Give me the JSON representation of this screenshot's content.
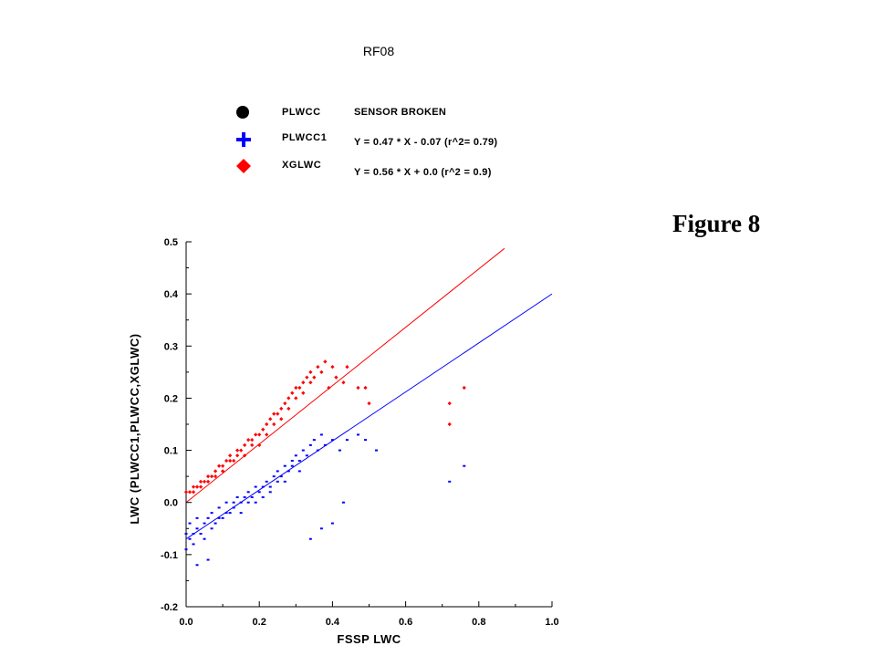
{
  "figure_label": "Figure 8",
  "chart_data": {
    "type": "scatter",
    "title": "RF08",
    "xlabel": "FSSP LWC",
    "ylabel": "LWC (PLWCC1,PLWCC,XGLWC)",
    "xlim": [
      0.0,
      1.0
    ],
    "ylim": [
      -0.2,
      0.5
    ],
    "x_ticks": [
      "0.0",
      "0.2",
      "0.4",
      "0.6",
      "0.8",
      "1.0"
    ],
    "y_ticks": [
      "-0.2",
      "-0.1",
      "0.0",
      "0.1",
      "0.2",
      "0.3",
      "0.4",
      "0.5"
    ],
    "grid": false,
    "legend_placement": "top",
    "legend": [
      {
        "name": "PLWCC",
        "marker": "circle",
        "color": "#000000",
        "note": "SENSOR BROKEN"
      },
      {
        "name": "PLWCC1",
        "marker": "plus",
        "color": "#0000ff",
        "note": "Y = 0.47 * X - 0.07 (r^2= 0.79)"
      },
      {
        "name": "XGLWC",
        "marker": "diamond",
        "color": "#ff0000",
        "note": "Y = 0.56 * X +  0.0  (r^2 = 0.9)"
      }
    ],
    "series": [
      {
        "name": "XGLWC",
        "color": "#ff0000",
        "fit": {
          "slope": 0.56,
          "intercept": 0.0,
          "x_end": 0.87
        },
        "points": [
          [
            0.0,
            0.02
          ],
          [
            0.01,
            0.02
          ],
          [
            0.02,
            0.03
          ],
          [
            0.02,
            0.02
          ],
          [
            0.03,
            0.03
          ],
          [
            0.04,
            0.04
          ],
          [
            0.04,
            0.03
          ],
          [
            0.05,
            0.04
          ],
          [
            0.06,
            0.05
          ],
          [
            0.06,
            0.04
          ],
          [
            0.07,
            0.05
          ],
          [
            0.08,
            0.06
          ],
          [
            0.08,
            0.05
          ],
          [
            0.09,
            0.07
          ],
          [
            0.1,
            0.07
          ],
          [
            0.1,
            0.06
          ],
          [
            0.11,
            0.08
          ],
          [
            0.12,
            0.08
          ],
          [
            0.12,
            0.09
          ],
          [
            0.13,
            0.08
          ],
          [
            0.14,
            0.1
          ],
          [
            0.14,
            0.09
          ],
          [
            0.15,
            0.1
          ],
          [
            0.16,
            0.11
          ],
          [
            0.16,
            0.09
          ],
          [
            0.17,
            0.12
          ],
          [
            0.18,
            0.11
          ],
          [
            0.18,
            0.12
          ],
          [
            0.19,
            0.13
          ],
          [
            0.2,
            0.13
          ],
          [
            0.2,
            0.11
          ],
          [
            0.21,
            0.14
          ],
          [
            0.22,
            0.15
          ],
          [
            0.22,
            0.13
          ],
          [
            0.23,
            0.16
          ],
          [
            0.24,
            0.15
          ],
          [
            0.24,
            0.17
          ],
          [
            0.25,
            0.17
          ],
          [
            0.26,
            0.16
          ],
          [
            0.26,
            0.18
          ],
          [
            0.27,
            0.19
          ],
          [
            0.28,
            0.18
          ],
          [
            0.28,
            0.2
          ],
          [
            0.29,
            0.21
          ],
          [
            0.3,
            0.2
          ],
          [
            0.3,
            0.22
          ],
          [
            0.31,
            0.22
          ],
          [
            0.32,
            0.21
          ],
          [
            0.32,
            0.23
          ],
          [
            0.33,
            0.24
          ],
          [
            0.34,
            0.23
          ],
          [
            0.34,
            0.25
          ],
          [
            0.35,
            0.24
          ],
          [
            0.36,
            0.26
          ],
          [
            0.37,
            0.25
          ],
          [
            0.38,
            0.27
          ],
          [
            0.39,
            0.22
          ],
          [
            0.4,
            0.26
          ],
          [
            0.41,
            0.24
          ],
          [
            0.43,
            0.23
          ],
          [
            0.44,
            0.26
          ],
          [
            0.47,
            0.22
          ],
          [
            0.49,
            0.22
          ],
          [
            0.5,
            0.19
          ],
          [
            0.72,
            0.15
          ],
          [
            0.72,
            0.19
          ],
          [
            0.76,
            0.22
          ]
        ]
      },
      {
        "name": "PLWCC1",
        "color": "#0000ff",
        "fit": {
          "slope": 0.47,
          "intercept": -0.07,
          "x_end": 1.0
        },
        "points": [
          [
            0.0,
            -0.06
          ],
          [
            0.0,
            -0.09
          ],
          [
            0.01,
            -0.07
          ],
          [
            0.01,
            -0.04
          ],
          [
            0.02,
            -0.06
          ],
          [
            0.02,
            -0.08
          ],
          [
            0.03,
            -0.05
          ],
          [
            0.03,
            -0.03
          ],
          [
            0.04,
            -0.06
          ],
          [
            0.05,
            -0.04
          ],
          [
            0.05,
            -0.07
          ],
          [
            0.06,
            -0.03
          ],
          [
            0.07,
            -0.05
          ],
          [
            0.07,
            -0.02
          ],
          [
            0.08,
            -0.04
          ],
          [
            0.09,
            -0.03
          ],
          [
            0.09,
            -0.01
          ],
          [
            0.1,
            -0.03
          ],
          [
            0.11,
            -0.02
          ],
          [
            0.11,
            0.0
          ],
          [
            0.12,
            -0.02
          ],
          [
            0.13,
            0.0
          ],
          [
            0.13,
            -0.01
          ],
          [
            0.14,
            0.01
          ],
          [
            0.15,
            0.0
          ],
          [
            0.15,
            -0.02
          ],
          [
            0.16,
            0.01
          ],
          [
            0.17,
            0.0
          ],
          [
            0.17,
            0.02
          ],
          [
            0.18,
            0.01
          ],
          [
            0.19,
            0.03
          ],
          [
            0.19,
            0.0
          ],
          [
            0.2,
            0.02
          ],
          [
            0.21,
            0.03
          ],
          [
            0.21,
            0.01
          ],
          [
            0.22,
            0.04
          ],
          [
            0.23,
            0.03
          ],
          [
            0.23,
            0.02
          ],
          [
            0.24,
            0.05
          ],
          [
            0.25,
            0.04
          ],
          [
            0.25,
            0.06
          ],
          [
            0.26,
            0.05
          ],
          [
            0.27,
            0.07
          ],
          [
            0.27,
            0.04
          ],
          [
            0.28,
            0.06
          ],
          [
            0.29,
            0.08
          ],
          [
            0.29,
            0.07
          ],
          [
            0.3,
            0.09
          ],
          [
            0.31,
            0.08
          ],
          [
            0.31,
            0.06
          ],
          [
            0.32,
            0.1
          ],
          [
            0.33,
            0.09
          ],
          [
            0.34,
            0.11
          ],
          [
            0.35,
            0.12
          ],
          [
            0.36,
            0.1
          ],
          [
            0.37,
            0.13
          ],
          [
            0.38,
            0.11
          ],
          [
            0.4,
            0.12
          ],
          [
            0.42,
            0.1
          ],
          [
            0.44,
            0.12
          ],
          [
            0.47,
            0.13
          ],
          [
            0.49,
            0.12
          ],
          [
            0.52,
            0.1
          ],
          [
            0.34,
            -0.07
          ],
          [
            0.37,
            -0.05
          ],
          [
            0.4,
            -0.04
          ],
          [
            0.43,
            0.0
          ],
          [
            0.06,
            -0.11
          ],
          [
            0.03,
            -0.12
          ],
          [
            0.72,
            0.04
          ],
          [
            0.76,
            0.07
          ]
        ]
      }
    ]
  }
}
